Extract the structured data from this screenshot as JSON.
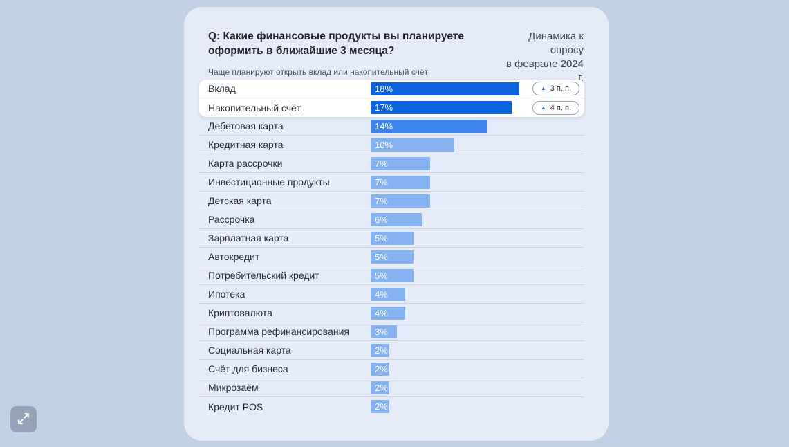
{
  "header": {
    "question": "Q: Какие финансовые продукты вы планируете оформить в ближайшие 3 месяца?",
    "dynamics_line1": "Динамика к опросу",
    "dynamics_line2": "в феврале 2024 г.",
    "subtitle": "Чаще планируют открыть вклад или накопительный счёт"
  },
  "chart_data": {
    "type": "bar",
    "orientation": "horizontal",
    "title": "Q: Какие финансовые продукты вы планируете оформить в ближайшие 3 месяца?",
    "subtitle": "Чаще планируют открыть вклад или накопительный счёт",
    "annotation": "Динамика к опросу в феврале 2024 г.",
    "unit": "%",
    "xlim": [
      0,
      20
    ],
    "categories": [
      "Вклад",
      "Накопительный счёт",
      "Дебетовая карта",
      "Кредитная карта",
      "Карта рассрочки",
      "Инвестиционные продукты",
      "Детская карта",
      "Рассрочка",
      "Зарплатная карта",
      "Автокредит",
      "Потребительский кредит",
      "Ипотека",
      "Криптовалюта",
      "Программа рефинансирования",
      "Социальная карта",
      "Счёт для бизнеса",
      "Микрозаём",
      "Кредит POS"
    ],
    "values": [
      18,
      17,
      14,
      10,
      7,
      7,
      7,
      6,
      5,
      5,
      5,
      4,
      4,
      3,
      2,
      2,
      2,
      2
    ],
    "emphasis": [
      "dark",
      "dark",
      "medium",
      "light",
      "light",
      "light",
      "light",
      "light",
      "light",
      "light",
      "light",
      "light",
      "light",
      "light",
      "light",
      "light",
      "light",
      "light"
    ],
    "highlighted_rows": [
      0,
      1
    ],
    "deltas": [
      {
        "row": 0,
        "text": "3 п. п.",
        "direction": "up"
      },
      {
        "row": 1,
        "text": "4 п. п.",
        "direction": "up"
      }
    ],
    "colors": {
      "bar_dark": "#0d63dd",
      "bar_medium": "#3e85ef",
      "bar_light": "#85b2f1",
      "highlight_bg": "#ffffff",
      "card_bg": "#e6ecf7",
      "page_bg": "#c2d0e5",
      "delta_triangle": "#2f6fe0"
    },
    "legend": false,
    "grid": false
  },
  "controls": {
    "expand_tooltip": "Развернуть"
  }
}
